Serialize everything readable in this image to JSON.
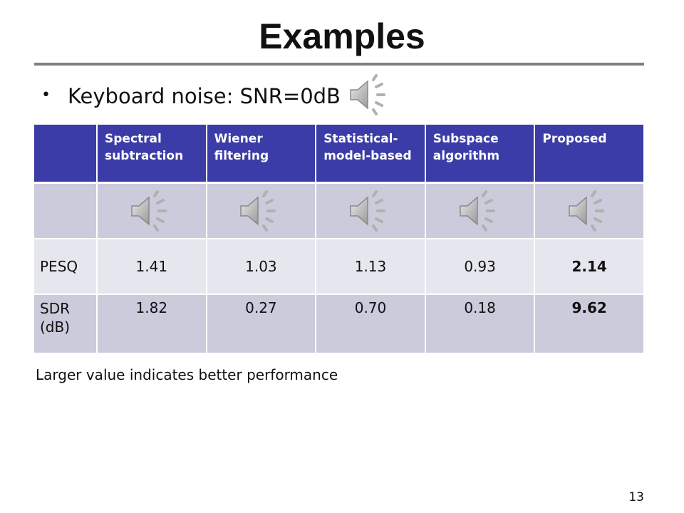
{
  "slide": {
    "title": "Examples",
    "bullet": "Keyboard noise: SNR=0dB",
    "footnote": "Larger value indicates better performance",
    "page_number": "13"
  },
  "table": {
    "headers": [
      "",
      "Spectral subtraction",
      "Wiener filtering",
      "Statistical-model-based",
      "Subspace algorithm",
      "Proposed"
    ],
    "audio_icon": "speaker-icon",
    "rows": [
      {
        "label": "PESQ",
        "values": [
          "1.41",
          "1.03",
          "1.13",
          "0.93",
          "2.14"
        ]
      },
      {
        "label": "SDR (dB)",
        "values": [
          "1.82",
          "0.27",
          "0.70",
          "0.18",
          "9.62"
        ]
      }
    ],
    "best_column": "Proposed"
  },
  "colors": {
    "header_bg": "#3c3ca8",
    "row_dark": "#cbcbdc",
    "row_light": "#e6e6ee",
    "title_rule": "#7f7f7f"
  }
}
